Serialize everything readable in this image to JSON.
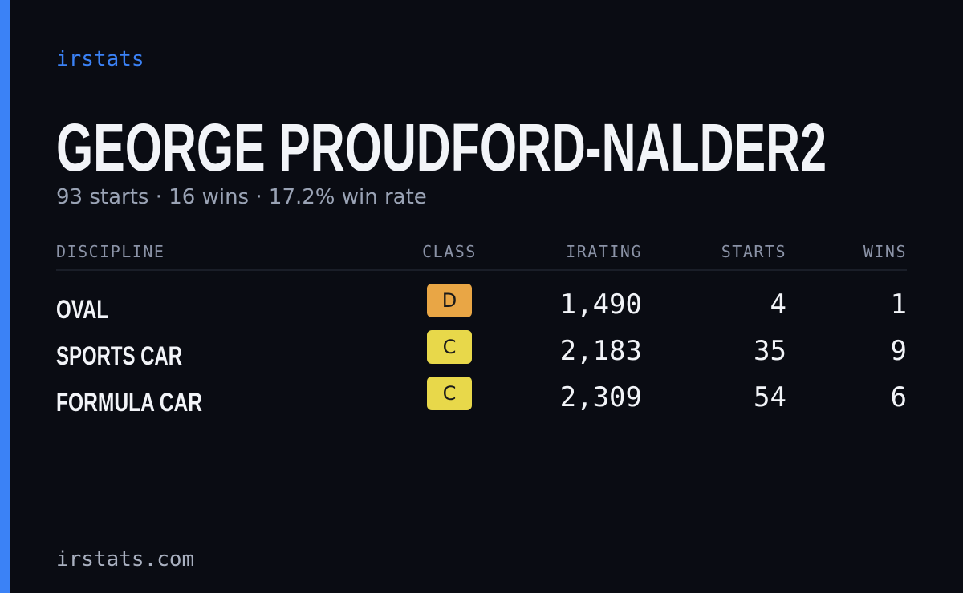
{
  "brand": "irstats",
  "title": "GEORGE PROUDFORD-NALDER2",
  "subtitle": "93 starts · 16 wins · 17.2% win rate",
  "table": {
    "headers": [
      "DISCIPLINE",
      "CLASS",
      "IRATING",
      "STARTS",
      "WINS"
    ],
    "rows": [
      [
        "OVAL",
        "D",
        "1,490",
        "4",
        "1"
      ],
      [
        "SPORTS CAR",
        "C",
        "2,183",
        "35",
        "9"
      ],
      [
        "FORMULA CAR",
        "C",
        "2,309",
        "54",
        "6"
      ]
    ],
    "class_colors": [
      "#e9a645",
      "#e8d84a",
      "#e8d84a"
    ]
  },
  "footer": "irstats.com"
}
